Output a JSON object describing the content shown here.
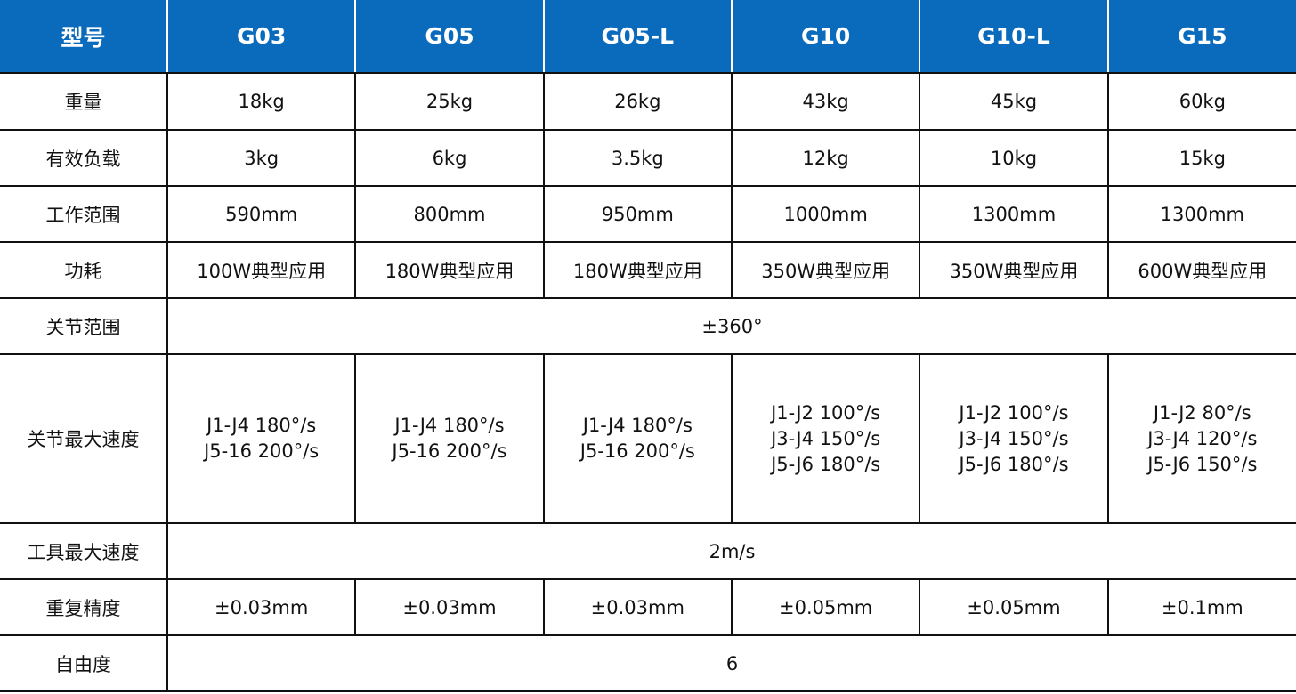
{
  "table": {
    "header": [
      "型号",
      "G03",
      "G05",
      "G05-L",
      "G10",
      "G10-L",
      "G15"
    ],
    "rows": [
      {
        "label": "重量",
        "cells": [
          "18kg",
          "25kg",
          "26kg",
          "43kg",
          "45kg",
          "60kg"
        ]
      },
      {
        "label": "有效负载",
        "cells": [
          "3kg",
          "6kg",
          "3.5kg",
          "12kg",
          "10kg",
          "15kg"
        ]
      },
      {
        "label": "工作范围",
        "cells": [
          "590mm",
          "800mm",
          "950mm",
          "1000mm",
          "1300mm",
          "1300mm"
        ]
      },
      {
        "label": "功耗",
        "cells": [
          "100W典型应用",
          "180W典型应用",
          "180W典型应用",
          "350W典型应用",
          "350W典型应用",
          "600W典型应用"
        ]
      },
      {
        "label": "关节范围",
        "cells": [
          "±360°"
        ]
      },
      {
        "label": "关节最大速度",
        "cells": [
          [
            "J1-J4 180°/s",
            "J5-16 200°/s"
          ],
          [
            "J1-J4 180°/s",
            "J5-16 200°/s"
          ],
          [
            "J1-J4 180°/s",
            "J5-16 200°/s"
          ],
          [
            "J1-J2 100°/s",
            "J3-J4 150°/s",
            "J5-J6 180°/s"
          ],
          [
            "J1-J2 100°/s",
            "J3-J4 150°/s",
            "J5-J6 180°/s"
          ],
          [
            "J1-J2 80°/s",
            "J3-J4 120°/s",
            "J5-J6 150°/s"
          ]
        ]
      },
      {
        "label": "工具最大速度",
        "cells": [
          "2m/s"
        ]
      },
      {
        "label": "重复精度",
        "cells": [
          "±0.03mm",
          "±0.03mm",
          "±0.03mm",
          "±0.05mm",
          "±0.05mm",
          "±0.1mm"
        ]
      },
      {
        "label": "自由度",
        "cells": [
          "6"
        ]
      }
    ]
  }
}
